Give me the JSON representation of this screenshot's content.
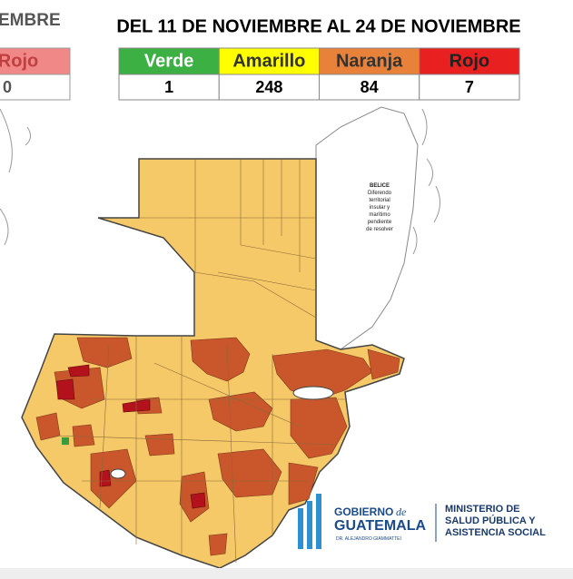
{
  "left_table": {
    "title": "EMBRE",
    "header": "Rojo",
    "value": 0
  },
  "table": {
    "title": "DEL 11 DE NOVIEMBRE AL 24 DE NOVIEMBRE",
    "headers": [
      "Verde",
      "Amarillo",
      "Naranja",
      "Rojo"
    ],
    "values": [
      1,
      248,
      84,
      7
    ]
  },
  "map": {
    "belize_label": [
      "BELICE",
      "Diferendo",
      "territorial",
      "insular y",
      "marítimo",
      "pendiente",
      "de resolver"
    ]
  },
  "logo": {
    "gobierno": "GOBIERNO",
    "de": "de",
    "guatemala": "GUATEMALA",
    "president": "DR. ALEJANDRO GIAMMATTEI",
    "ministry": [
      "MINISTERIO DE",
      "SALUD PÚBLICA Y",
      "ASISTENCIA SOCIAL"
    ]
  }
}
